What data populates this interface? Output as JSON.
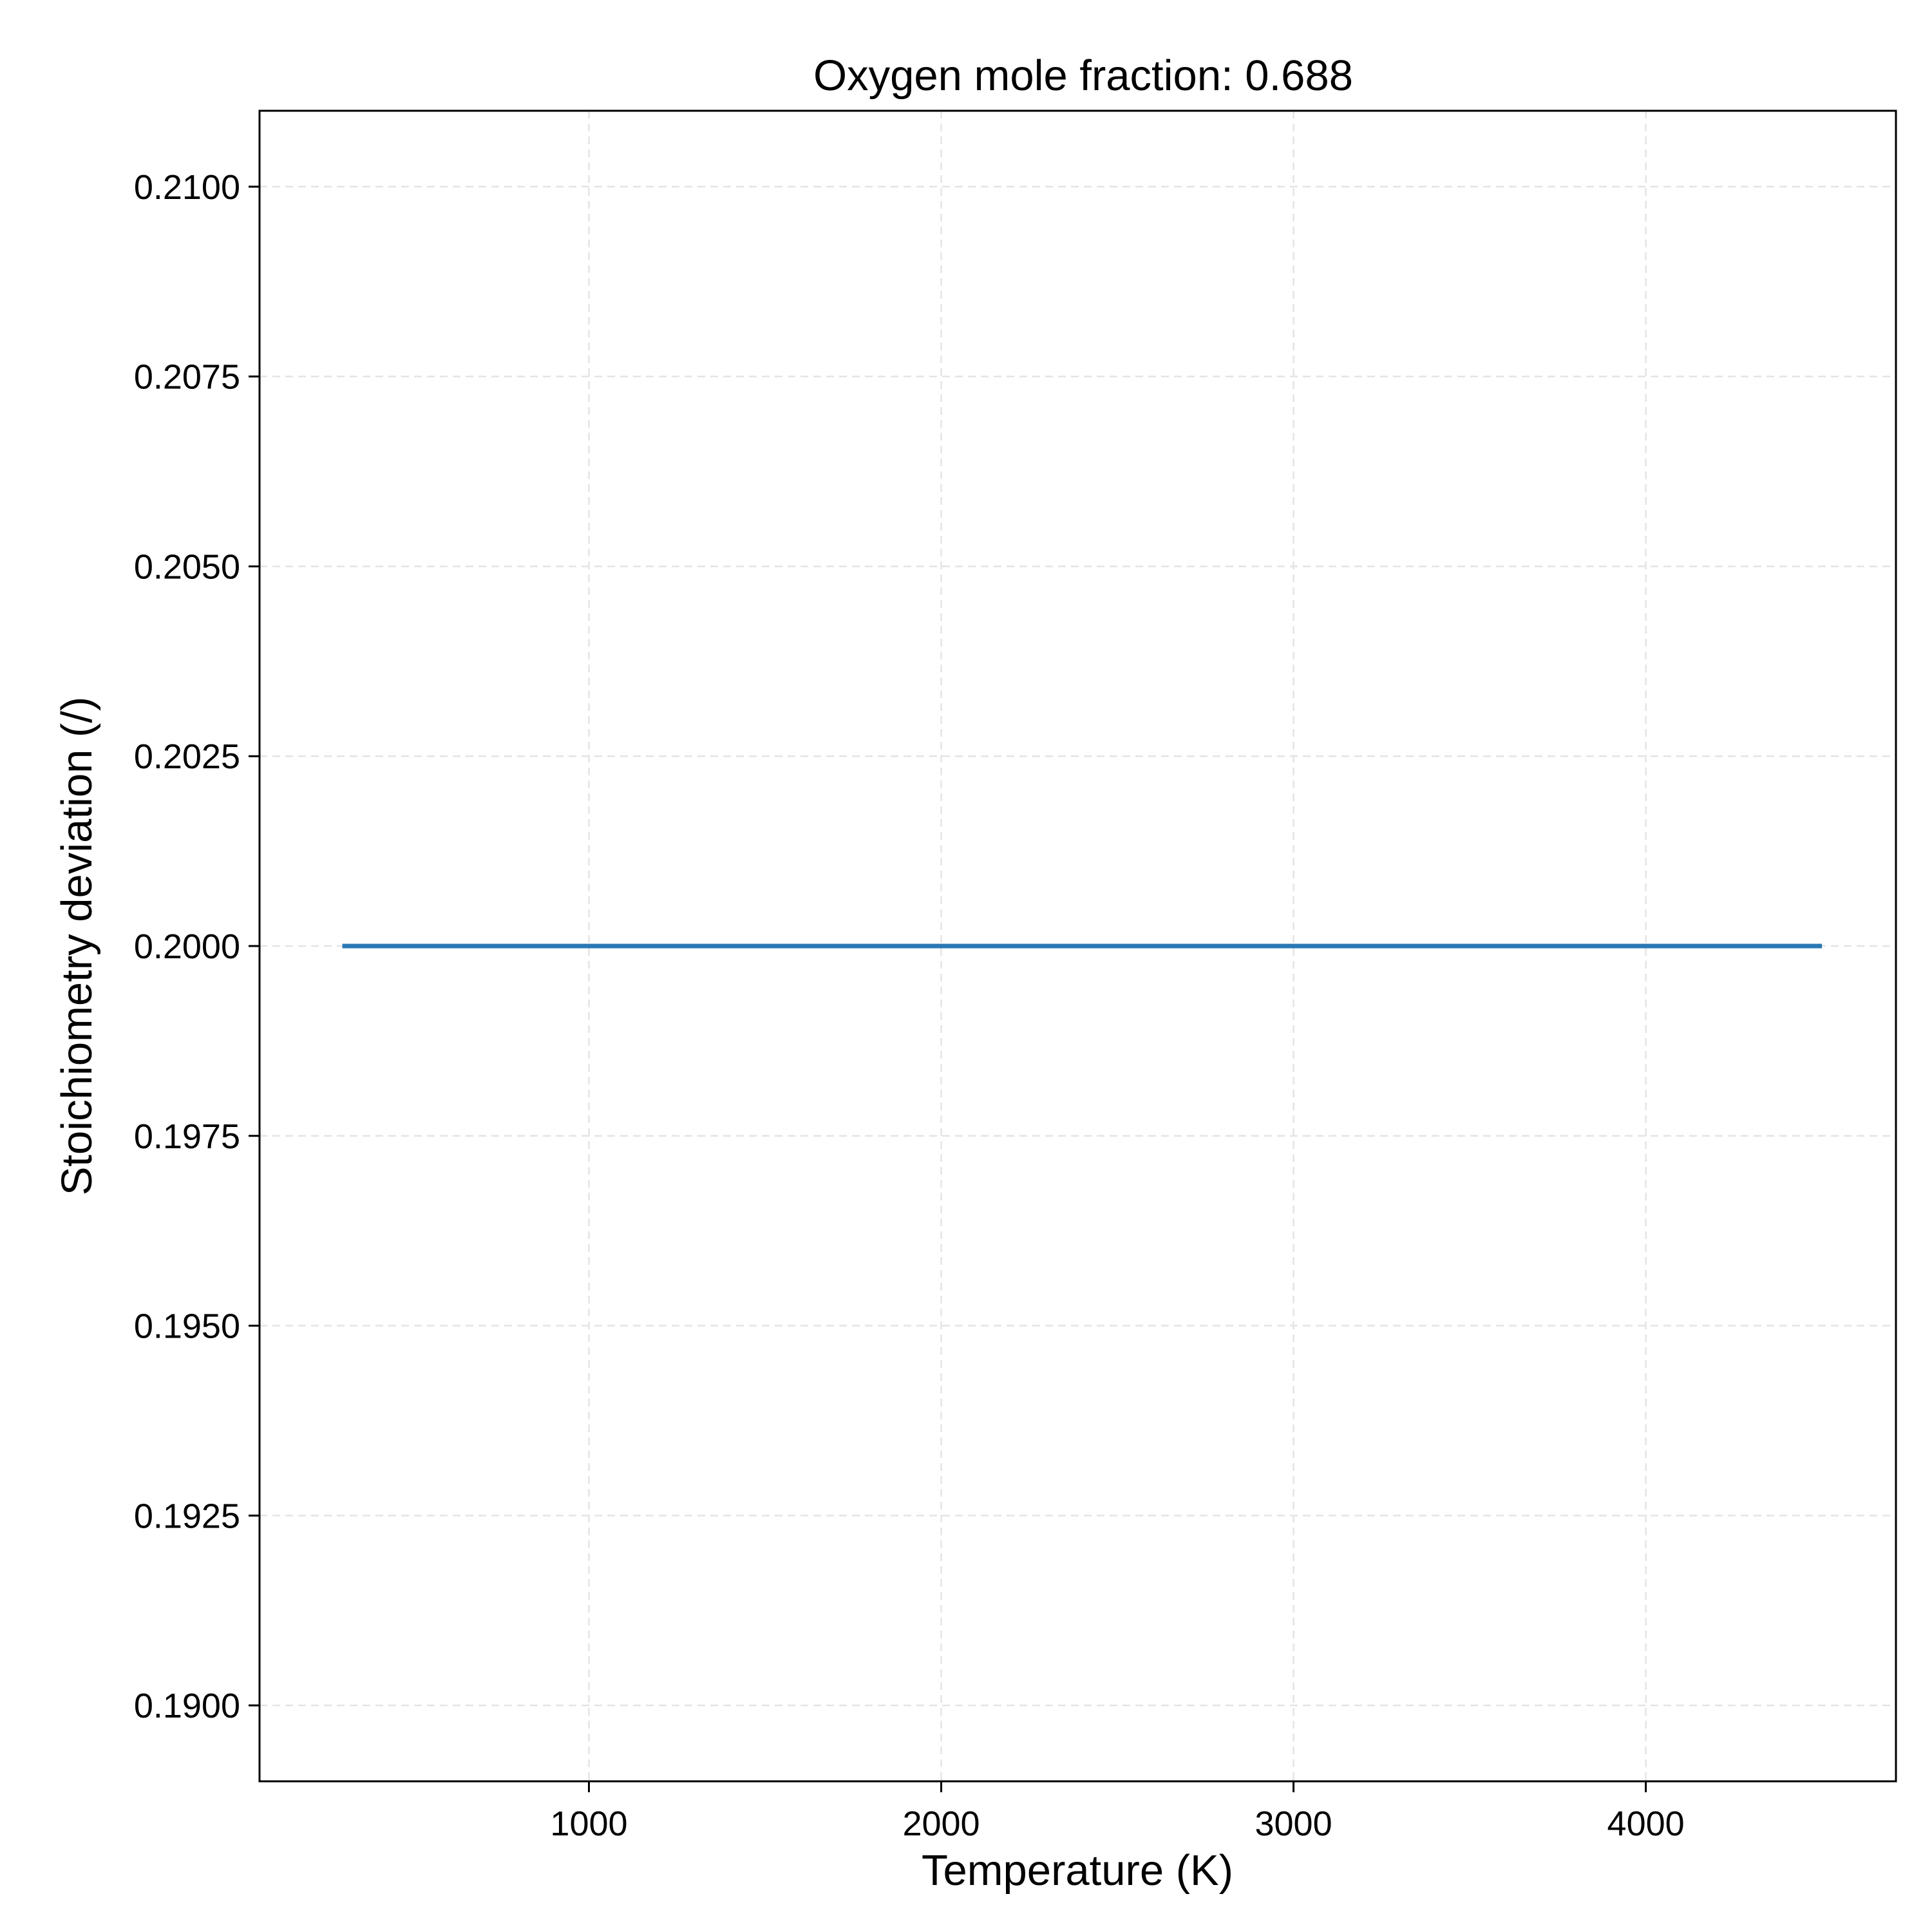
{
  "chart_data": {
    "type": "line",
    "title": "Oxygen mole fraction: 0.688",
    "xlabel": "Temperature (K)",
    "ylabel": "Stoichiometry deviation (/)",
    "xlim": [
      65,
      4710
    ],
    "ylim": [
      0.189,
      0.211
    ],
    "x_ticks": [
      1000,
      2000,
      3000,
      4000
    ],
    "x_tick_labels": [
      "1000",
      "2000",
      "3000",
      "4000"
    ],
    "y_ticks": [
      0.19,
      0.1925,
      0.195,
      0.1975,
      0.2,
      0.2025,
      0.205,
      0.2075,
      0.21
    ],
    "y_tick_labels": [
      "0.1900",
      "0.1925",
      "0.1950",
      "0.1975",
      "0.2000",
      "0.2025",
      "0.2050",
      "0.2075",
      "0.2100"
    ],
    "grid": true,
    "series": [
      {
        "color": "#2a78b4",
        "x": [
          300,
          4500
        ],
        "y": [
          0.2,
          0.2
        ]
      }
    ]
  }
}
